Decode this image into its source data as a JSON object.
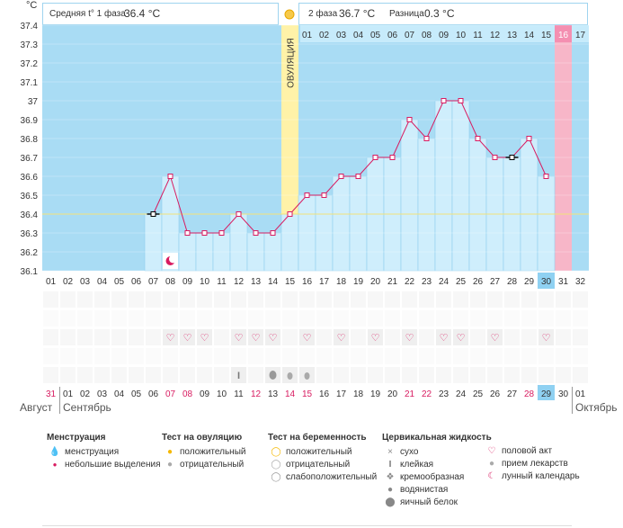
{
  "header": {
    "celsius_label": "°C",
    "phase1_label": "Средняя t° 1 фаза",
    "phase1_value": "36.4 °C",
    "phase2_label": "2 фаза",
    "phase2_value": "36.7 °C",
    "diff_label": "Разница",
    "diff_value": "0.3 °C"
  },
  "chart_data": {
    "type": "line",
    "title": "",
    "ylabel": "°C",
    "ylim": [
      36.1,
      37.4
    ],
    "yticks": [
      "36.1",
      "36.2",
      "36.3",
      "36.4",
      "36.5",
      "36.6",
      "36.7",
      "36.8",
      "36.9",
      "37",
      "37.1",
      "37.2",
      "37.3",
      "37.4"
    ],
    "baseline": 36.4,
    "cycle_days": [
      "01",
      "02",
      "03",
      "04",
      "05",
      "06",
      "07",
      "08",
      "09",
      "10",
      "11",
      "12",
      "13",
      "14",
      "15",
      "16",
      "17",
      "18",
      "19",
      "20",
      "21",
      "22",
      "23",
      "24",
      "25",
      "26",
      "27",
      "28",
      "29",
      "30",
      "31",
      "32"
    ],
    "temps_start_day": 7,
    "temps": [
      36.4,
      36.6,
      36.3,
      36.3,
      36.3,
      36.4,
      36.3,
      36.3,
      36.4,
      36.5,
      36.5,
      36.6,
      36.6,
      36.7,
      36.7,
      36.9,
      36.8,
      37.0,
      37.0,
      36.8,
      36.7,
      36.7,
      36.8,
      36.6
    ],
    "black_marker_days": [
      7,
      28
    ],
    "ovulation_day": 15,
    "ovulation_label": "ОВУЛЯЦИЯ",
    "phase2_days": [
      "01",
      "02",
      "03",
      "04",
      "05",
      "06",
      "07",
      "08",
      "09",
      "10",
      "11",
      "12",
      "13",
      "14",
      "15",
      "16",
      "17"
    ],
    "highlight_phase2_day": "16",
    "highlight_cycle_day": "30",
    "calendar_dates": [
      "31",
      "01",
      "02",
      "03",
      "04",
      "05",
      "06",
      "07",
      "08",
      "09",
      "10",
      "11",
      "12",
      "13",
      "14",
      "15",
      "16",
      "17",
      "18",
      "19",
      "20",
      "21",
      "22",
      "23",
      "24",
      "25",
      "26",
      "27",
      "28",
      "29",
      "30",
      "01"
    ],
    "red_dates": [
      "31",
      "07",
      "08",
      "12",
      "14",
      "15",
      "21",
      "22",
      "28"
    ],
    "highlight_date": "29",
    "month_start": "Август",
    "month_mid": "Сентябрь",
    "month_end": "Октябрь",
    "heart_days": [
      8,
      9,
      10,
      12,
      13,
      14,
      16,
      18,
      20,
      22,
      24,
      25,
      27,
      30
    ],
    "fluid_icons": [
      {
        "day": 12,
        "type": "sticky",
        "glyph": "I"
      },
      {
        "day": 14,
        "type": "watery"
      },
      {
        "day": 15,
        "type": "watery-small"
      },
      {
        "day": 16,
        "type": "watery-small"
      }
    ],
    "moon_day": 8
  },
  "legend": {
    "menstruation": {
      "title": "Менструация",
      "items": [
        "менструация",
        "небольшие выделения"
      ]
    },
    "ovulation_test": {
      "title": "Тест на овуляцию",
      "items": [
        "положительный",
        "отрицательный"
      ]
    },
    "pregnancy_test": {
      "title": "Тест на беременность",
      "items": [
        "положительный",
        "отрицательный",
        "слабоположительный"
      ]
    },
    "cervical_fluid": {
      "title": "Цервикальная жидкость",
      "items": [
        "сухо",
        "клейкая",
        "кремообразная",
        "водянистая",
        "яичный белок"
      ]
    },
    "other": {
      "items": [
        "половой акт",
        "прием лекарств",
        "лунный календарь"
      ]
    }
  },
  "colors": {
    "sky": "#a9dcf4",
    "bar_fill": "#cfeefc",
    "bar_edge": "#8fcfee",
    "line": "#d81b60",
    "ovulation": "#fff2a8",
    "pink_day": "#f7b6c8",
    "highlight_blue": "#8fd1f2",
    "red_text": "#d81b60"
  }
}
